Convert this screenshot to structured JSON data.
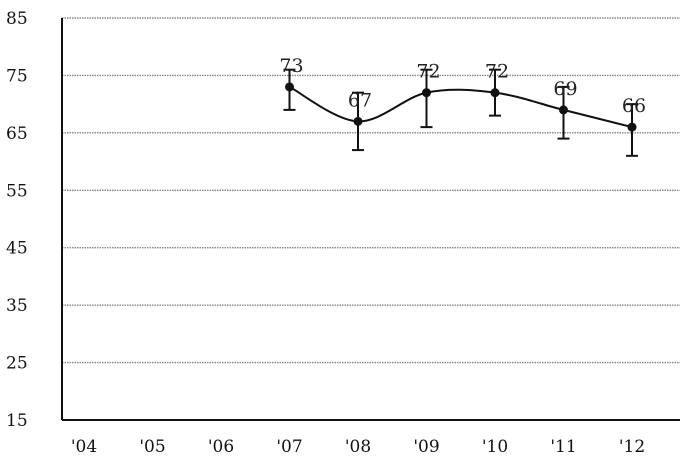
{
  "chart_data": {
    "type": "line",
    "title": "",
    "xlabel": "",
    "ylabel": "",
    "categories": [
      "'04",
      "'05",
      "'06",
      "'07",
      "'08",
      "'09",
      "'10",
      "'11",
      "'12"
    ],
    "yticks": [
      85,
      75,
      65,
      55,
      45,
      35,
      25,
      15
    ],
    "ylim": [
      15,
      85
    ],
    "grid": true,
    "legend": "none",
    "colors": {
      "line": "#111111",
      "grid": "#888888",
      "axis": "#111111"
    },
    "series": [
      {
        "values": [
          null,
          null,
          null,
          73,
          67,
          72,
          72,
          69,
          66
        ],
        "value_labels": [
          "",
          "",
          "",
          "73",
          "67",
          "72",
          "72",
          "69",
          "66"
        ],
        "error_low": [
          null,
          null,
          null,
          69,
          62,
          66,
          68,
          64,
          61
        ],
        "error_high": [
          null,
          null,
          null,
          76,
          72,
          76,
          76,
          73,
          70
        ]
      }
    ]
  }
}
